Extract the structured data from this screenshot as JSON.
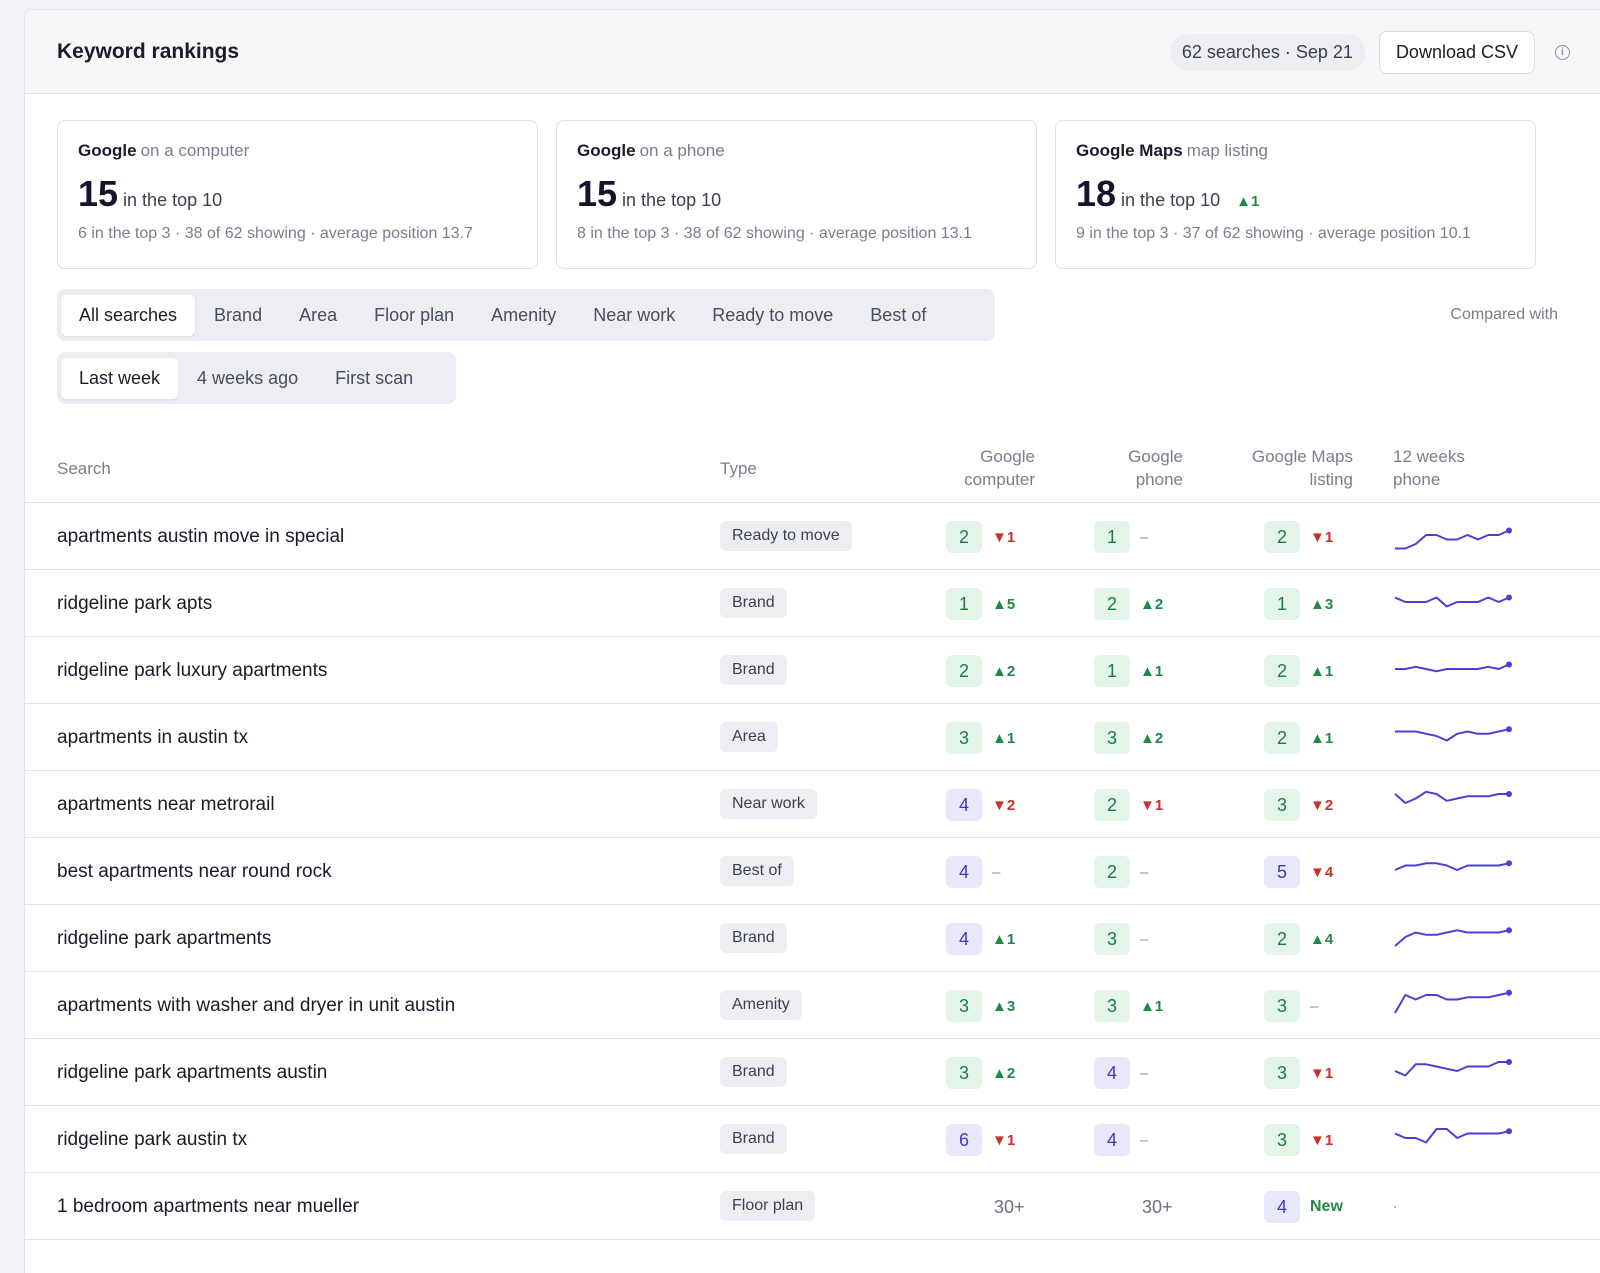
{
  "header": {
    "title": "Keyword rankings",
    "meta": "62 searches · Sep 21",
    "download_label": "Download CSV",
    "info_icon": "i"
  },
  "cards": [
    {
      "engine": "Google",
      "device": "on a computer",
      "count": "15",
      "label": "in the top 10",
      "change": "",
      "detail": "6 in the top 3 · 38 of 62 showing · average position 13.7"
    },
    {
      "engine": "Google",
      "device": "on a phone",
      "count": "15",
      "label": "in the top 10",
      "change": "",
      "detail": "8 in the top 3 · 38 of 62 showing · average position 13.1"
    },
    {
      "engine": "Google Maps",
      "device": "map listing",
      "count": "18",
      "label": "in the top 10",
      "change": "▲1",
      "detail": "9 in the top 3 · 37 of 62 showing · average position 10.1"
    }
  ],
  "filter_tabs": [
    "All searches",
    "Brand",
    "Area",
    "Floor plan",
    "Amenity",
    "Near work",
    "Ready to move",
    "Best of"
  ],
  "compared_label": "Compared with",
  "compare_tabs": [
    "Last week",
    "4 weeks ago",
    "First scan"
  ],
  "columns": {
    "search": "Search",
    "type": "Type",
    "gc1": "Google",
    "gc2": "computer",
    "gp1": "Google",
    "gp2": "phone",
    "gm1": "Google Maps",
    "gm2": "listing",
    "w1": "12 weeks",
    "w2": "phone"
  },
  "colors": {
    "green_badge": "#e2f5e8",
    "blue_badge": "#e9e8fb",
    "up": "#1f8a47",
    "down": "#c8322a",
    "spark": "#4a3fd8"
  },
  "rows": [
    {
      "keyword": "apartments austin move in special",
      "type": "Ready to move",
      "gc": {
        "pos": "2",
        "tone": "g",
        "delta": "▼1",
        "dir": "down"
      },
      "gp": {
        "pos": "1",
        "tone": "g",
        "delta": "–",
        "dir": "none"
      },
      "gm": {
        "pos": "2",
        "tone": "g",
        "delta": "▼1",
        "dir": "down"
      },
      "trend": [
        9,
        9,
        8,
        6,
        6,
        7,
        7,
        6,
        7,
        6,
        6,
        5
      ]
    },
    {
      "keyword": "ridgeline park apts",
      "type": "Brand",
      "gc": {
        "pos": "1",
        "tone": "g",
        "delta": "▲5",
        "dir": "up"
      },
      "gp": {
        "pos": "2",
        "tone": "g",
        "delta": "▲2",
        "dir": "up"
      },
      "gm": {
        "pos": "1",
        "tone": "g",
        "delta": "▲3",
        "dir": "up"
      },
      "trend": [
        5,
        6,
        6,
        6,
        5,
        7,
        6,
        6,
        6,
        5,
        6,
        5
      ]
    },
    {
      "keyword": "ridgeline park luxury apartments",
      "type": "Brand",
      "gc": {
        "pos": "2",
        "tone": "g",
        "delta": "▲2",
        "dir": "up"
      },
      "gp": {
        "pos": "1",
        "tone": "g",
        "delta": "▲1",
        "dir": "up"
      },
      "gm": {
        "pos": "2",
        "tone": "g",
        "delta": "▲1",
        "dir": "up"
      },
      "trend": [
        6,
        6,
        5.5,
        6,
        6.5,
        6,
        6,
        6,
        6,
        5.5,
        6,
        5
      ]
    },
    {
      "keyword": "apartments in austin tx",
      "type": "Area",
      "gc": {
        "pos": "3",
        "tone": "g",
        "delta": "▲1",
        "dir": "up"
      },
      "gp": {
        "pos": "3",
        "tone": "g",
        "delta": "▲2",
        "dir": "up"
      },
      "gm": {
        "pos": "2",
        "tone": "g",
        "delta": "▲1",
        "dir": "up"
      },
      "trend": [
        5,
        5,
        5,
        5.5,
        6,
        7,
        5.5,
        5,
        5.5,
        5.5,
        5,
        4.5
      ]
    },
    {
      "keyword": "apartments near metrorail",
      "type": "Near work",
      "gc": {
        "pos": "4",
        "tone": "b",
        "delta": "▼2",
        "dir": "down"
      },
      "gp": {
        "pos": "2",
        "tone": "g",
        "delta": "▼1",
        "dir": "down"
      },
      "gm": {
        "pos": "3",
        "tone": "g",
        "delta": "▼2",
        "dir": "down"
      },
      "trend": [
        4,
        6,
        5,
        3.5,
        4,
        5.5,
        5,
        4.5,
        4.5,
        4.5,
        4,
        4
      ]
    },
    {
      "keyword": "best apartments near round rock",
      "type": "Best of",
      "gc": {
        "pos": "4",
        "tone": "b",
        "delta": "–",
        "dir": "none"
      },
      "gp": {
        "pos": "2",
        "tone": "g",
        "delta": "–",
        "dir": "none"
      },
      "gm": {
        "pos": "5",
        "tone": "b",
        "delta": "▼4",
        "dir": "down"
      },
      "trend": [
        6,
        5,
        5,
        4.5,
        4.5,
        5,
        6,
        5,
        5,
        5,
        5,
        4.5
      ]
    },
    {
      "keyword": "ridgeline park apartments",
      "type": "Brand",
      "gc": {
        "pos": "4",
        "tone": "b",
        "delta": "▲1",
        "dir": "up"
      },
      "gp": {
        "pos": "3",
        "tone": "g",
        "delta": "–",
        "dir": "none"
      },
      "gm": {
        "pos": "2",
        "tone": "g",
        "delta": "▲4",
        "dir": "up"
      },
      "trend": [
        8,
        6,
        5,
        5.5,
        5.5,
        5,
        4.5,
        5,
        5,
        5,
        5,
        4.5
      ]
    },
    {
      "keyword": "apartments with washer and dryer in unit austin",
      "type": "Amenity",
      "gc": {
        "pos": "3",
        "tone": "g",
        "delta": "▲3",
        "dir": "up"
      },
      "gp": {
        "pos": "3",
        "tone": "g",
        "delta": "▲1",
        "dir": "up"
      },
      "gm": {
        "pos": "3",
        "tone": "g",
        "delta": "–",
        "dir": "none"
      },
      "trend": [
        8,
        4,
        5,
        4,
        4,
        5,
        5,
        4.5,
        4.5,
        4.5,
        4,
        3.5
      ]
    },
    {
      "keyword": "ridgeline park apartments austin",
      "type": "Brand",
      "gc": {
        "pos": "3",
        "tone": "g",
        "delta": "▲2",
        "dir": "up"
      },
      "gp": {
        "pos": "4",
        "tone": "b",
        "delta": "–",
        "dir": "none"
      },
      "gm": {
        "pos": "3",
        "tone": "g",
        "delta": "▼1",
        "dir": "down"
      },
      "trend": [
        6,
        7,
        4.5,
        4.5,
        5,
        5.5,
        6,
        5,
        5,
        5,
        4,
        4
      ]
    },
    {
      "keyword": "ridgeline park austin tx",
      "type": "Brand",
      "gc": {
        "pos": "6",
        "tone": "b",
        "delta": "▼1",
        "dir": "down"
      },
      "gp": {
        "pos": "4",
        "tone": "b",
        "delta": "–",
        "dir": "none"
      },
      "gm": {
        "pos": "3",
        "tone": "g",
        "delta": "▼1",
        "dir": "down"
      },
      "trend": [
        5,
        6,
        6,
        7,
        4,
        4,
        6,
        5,
        5,
        5,
        5,
        4.5
      ]
    },
    {
      "keyword": "1 bedroom apartments near mueller",
      "type": "Floor plan",
      "gc": {
        "pos": "30+",
        "tone": "plain",
        "delta": "",
        "dir": "none"
      },
      "gp": {
        "pos": "30+",
        "tone": "plain",
        "delta": "",
        "dir": "none"
      },
      "gm": {
        "pos": "4",
        "tone": "b",
        "delta": "New",
        "dir": "new"
      },
      "trend": []
    }
  ]
}
